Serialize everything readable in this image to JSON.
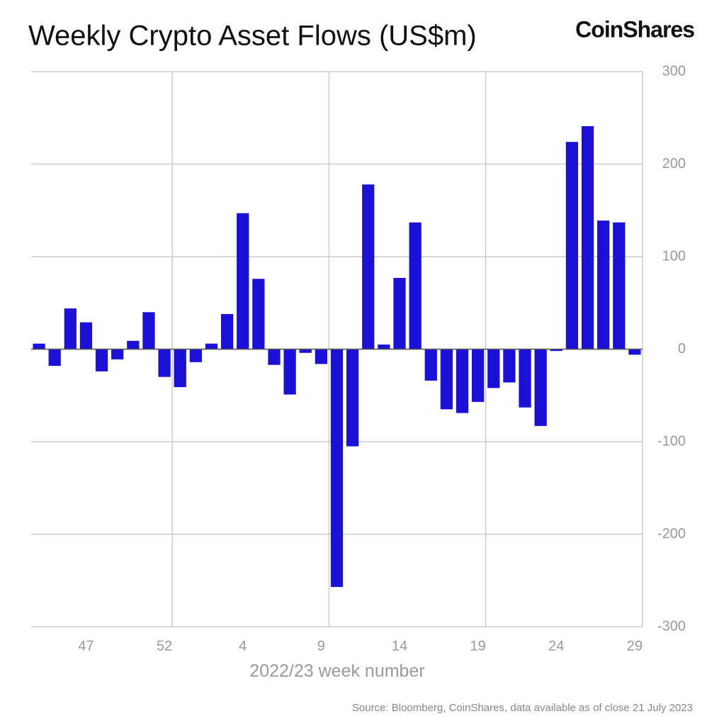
{
  "chart_data": {
    "type": "bar",
    "title": "Weekly Crypto Asset Flows (US$m)",
    "brand": "CoinShares",
    "x_label": "2022/23 week number",
    "source": "Source: Bloomberg, CoinShares, data available as of close 21 July 2023",
    "categories": [
      null,
      null,
      null,
      "47",
      null,
      null,
      null,
      null,
      "52",
      null,
      null,
      null,
      null,
      "4",
      null,
      null,
      null,
      null,
      "9",
      null,
      null,
      null,
      null,
      "14",
      null,
      null,
      null,
      null,
      "19",
      null,
      null,
      null,
      null,
      "24",
      null,
      null,
      null,
      null,
      "29"
    ],
    "values": [
      6,
      -18,
      44,
      29,
      -24,
      -11,
      9,
      40,
      -30,
      -41,
      -14,
      6,
      38,
      147,
      76,
      -17,
      -49,
      -4,
      -16,
      -257,
      -105,
      178,
      5,
      77,
      137,
      -34,
      -65,
      -69,
      -57,
      -42,
      -36,
      -63,
      -83,
      -2,
      224,
      241,
      139,
      137,
      -6
    ],
    "color": "#1a10d6",
    "ylim": [
      -300,
      300
    ],
    "yticks": [
      -300,
      -200,
      -100,
      0,
      100,
      200,
      300
    ],
    "grid": true
  }
}
